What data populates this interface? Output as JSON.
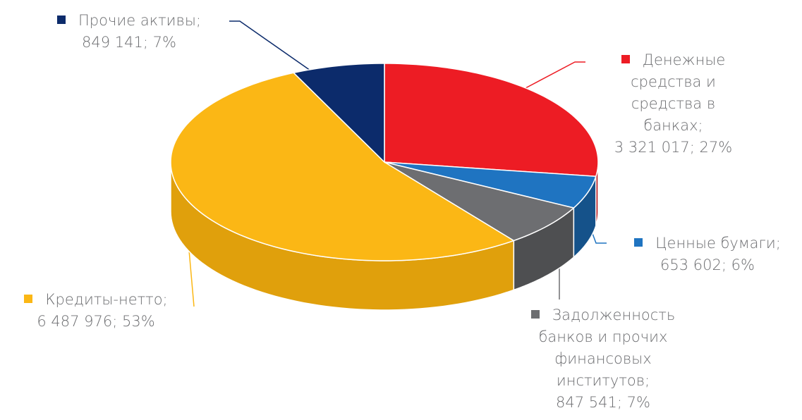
{
  "chart_data": {
    "type": "pie",
    "categories": [
      "Денежные средства и средства в банках;",
      "Ценные бумаги;",
      "Задолженность банков и прочих финансовых институтов;",
      "Кредиты-нетто;",
      "Прочие активы;"
    ],
    "values": [
      3321017,
      653602,
      847541,
      6487976,
      849141
    ],
    "value_labels": [
      "3 321 017; 27%",
      "653 602; 6%",
      "847 541; 7%",
      "6 487 976; 53%",
      "849 141; 7%"
    ],
    "colors": [
      "#ed1c24",
      "#1f74c1",
      "#6d6e71",
      "#fbb715",
      "#0c2b6b"
    ],
    "side_colors": [
      "#b5151b",
      "#15528a",
      "#4e4f51",
      "#e0a00c",
      "#081d4a"
    ]
  }
}
